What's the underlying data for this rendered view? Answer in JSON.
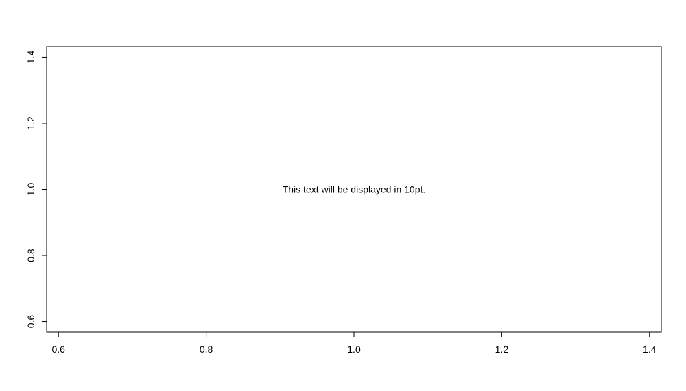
{
  "chart_data": {
    "type": "scatter",
    "title": "",
    "xlabel": "",
    "ylabel": "",
    "xlim": [
      0.584,
      1.416
    ],
    "ylim": [
      0.568,
      1.432
    ],
    "x_ticks": [
      "0.6",
      "0.8",
      "1.0",
      "1.2",
      "1.4"
    ],
    "y_ticks": [
      "0.6",
      "0.8",
      "1.0",
      "1.2",
      "1.4"
    ],
    "grid": false,
    "series": [],
    "annotations": [
      {
        "x": 1.0,
        "y": 1.0,
        "text": "This text will be displayed in 10pt."
      }
    ]
  }
}
